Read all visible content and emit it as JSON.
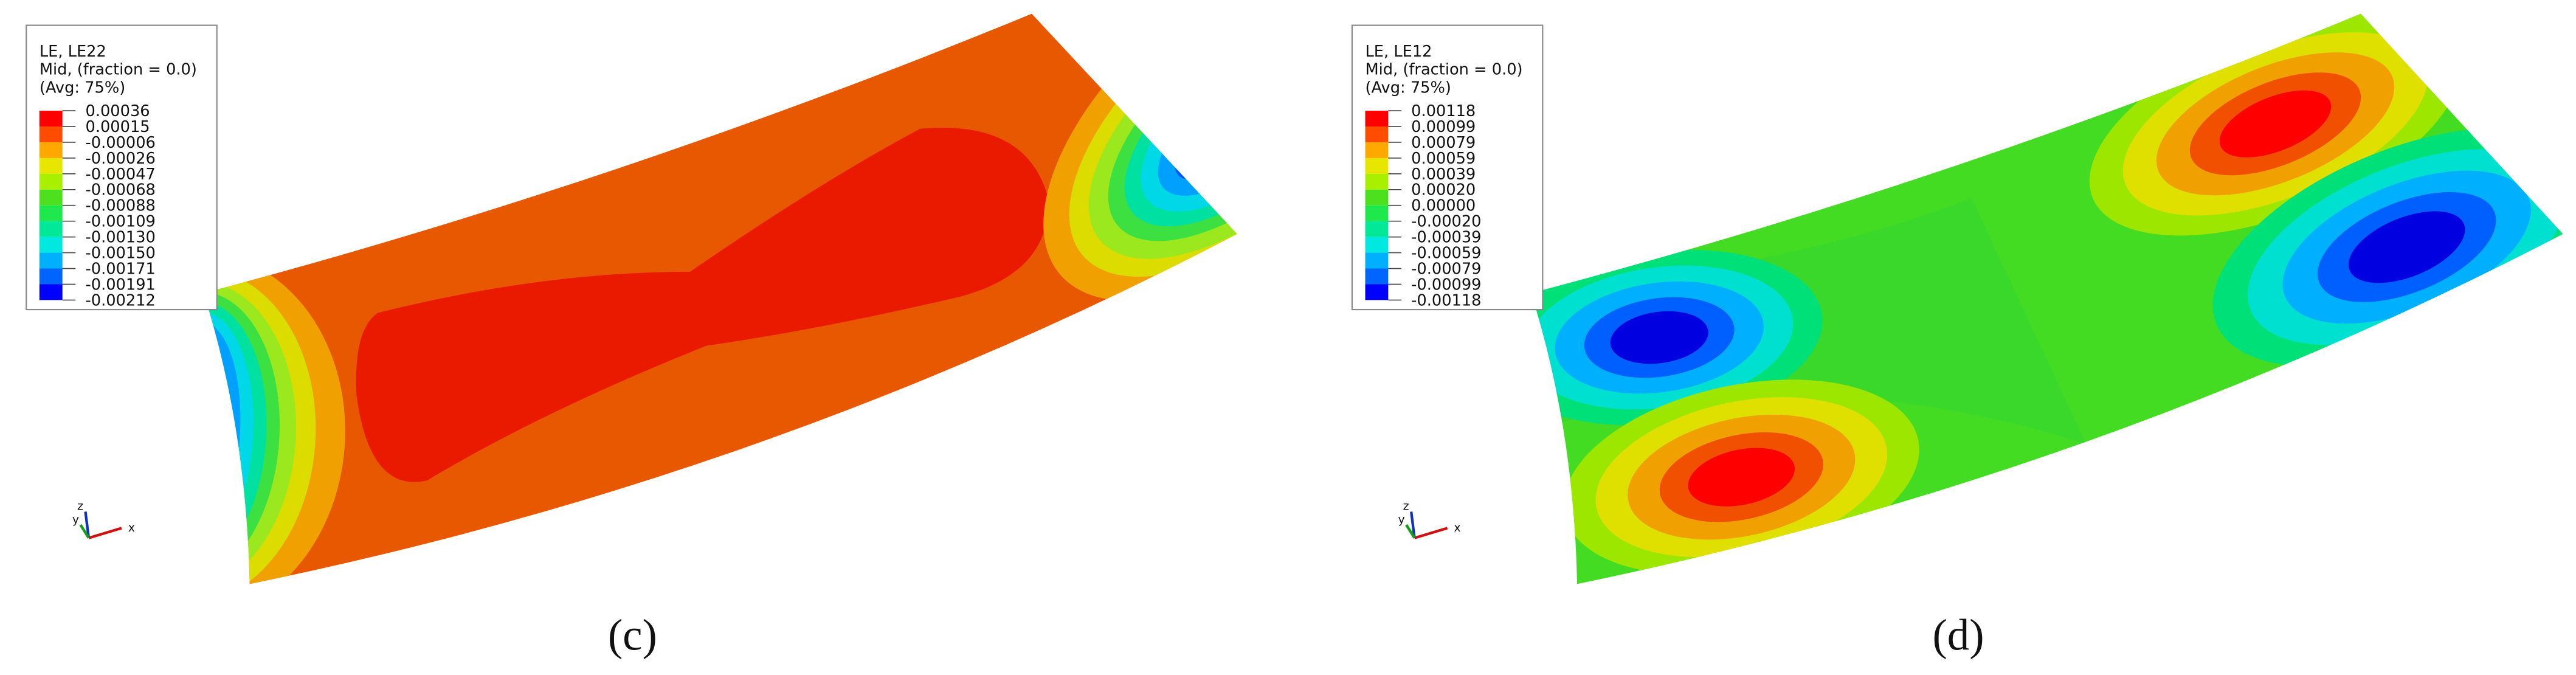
{
  "panels": [
    {
      "legend": {
        "lines": [
          "LE, LE22",
          "Mid, (fraction = 0.0)",
          "(Avg: 75%)"
        ],
        "values": [
          "0.00036",
          "0.00015",
          "-0.00006",
          "-0.00026",
          "-0.00047",
          "-0.00068",
          "-0.00088",
          "-0.00109",
          "-0.00130",
          "-0.00150",
          "-0.00171",
          "-0.00191",
          "-0.00212"
        ]
      },
      "triad": {
        "z": "z",
        "y": "y",
        "x": "x"
      },
      "caption": "(c)"
    },
    {
      "legend": {
        "lines": [
          "LE, LE12",
          "Mid, (fraction = 0.0)",
          "(Avg: 75%)"
        ],
        "values": [
          "0.00118",
          "0.00099",
          "0.00079",
          "0.00059",
          "0.00039",
          "0.00020",
          "0.00000",
          "-0.00020",
          "-0.00039",
          "-0.00059",
          "-0.00079",
          "-0.00099",
          "-0.00118"
        ]
      },
      "triad": {
        "z": "z",
        "y": "y",
        "x": "x"
      },
      "caption": "(d)"
    }
  ]
}
